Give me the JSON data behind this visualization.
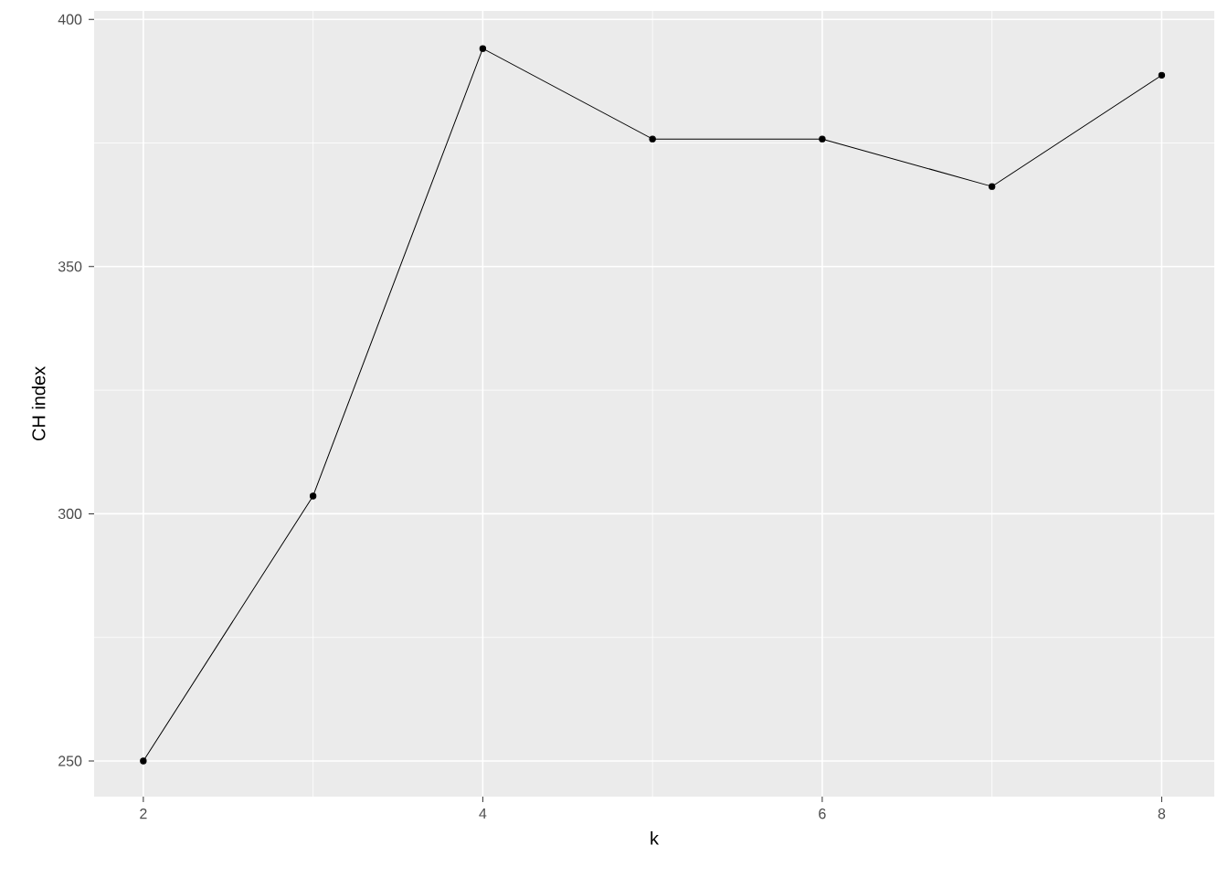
{
  "chart_data": {
    "type": "line",
    "xlabel": "k",
    "ylabel": "CH index",
    "x": [
      2,
      3,
      4,
      5,
      6,
      7,
      8
    ],
    "series": [
      {
        "color": "#000000",
        "values": [
          250,
          303.6,
          394.1,
          375.8,
          375.8,
          366.2,
          388.7
        ]
      }
    ],
    "xlim": [
      1.71,
      8.31
    ],
    "ylim": [
      242.8,
      401.7
    ],
    "xticks": [
      2,
      4,
      6,
      8
    ],
    "yticks": [
      250,
      300,
      350,
      400
    ],
    "grid": true,
    "marker": "circle",
    "line_style": "solid"
  }
}
